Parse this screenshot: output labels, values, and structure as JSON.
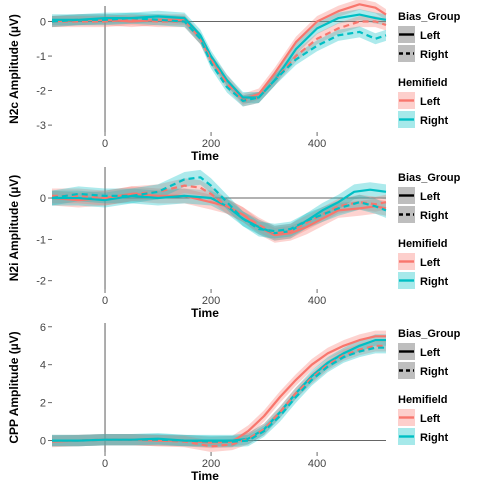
{
  "colors": {
    "left": "#F8766D",
    "right": "#00BFC4",
    "left_ribbon": "#F8766D",
    "right_ribbon": "#00BFC4",
    "legend_key_bg": "#BEBEBE"
  },
  "legend": {
    "bias_group": {
      "title": "Bias_Group",
      "items": [
        "Left",
        "Right"
      ]
    },
    "hemifield": {
      "title": "Hemifield",
      "items": [
        "Left",
        "Right"
      ]
    }
  },
  "chart_data": [
    {
      "type": "line",
      "ylabel": "N2c Amplitude (µV)",
      "xlabel": "Time",
      "xlim": [
        -100,
        530
      ],
      "ylim": [
        -3.2,
        0.45
      ],
      "xticks": [
        0,
        200,
        400
      ],
      "yticks": [
        0,
        -1,
        -2,
        -3
      ],
      "ytick_labels": [
        "0",
        "-1",
        "-2",
        "-3"
      ],
      "grid": false,
      "ribbon_width": 0.16,
      "series": [
        {
          "name": "Left",
          "bias_group": "Left",
          "hemifield": "Left",
          "points": [
            [
              -100,
              0
            ],
            [
              -50,
              0.05
            ],
            [
              0,
              0.05
            ],
            [
              50,
              0
            ],
            [
              100,
              0.05
            ],
            [
              150,
              0.05
            ],
            [
              180,
              -0.5
            ],
            [
              200,
              -1.1
            ],
            [
              230,
              -1.7
            ],
            [
              260,
              -2.25
            ],
            [
              290,
              -2.1
            ],
            [
              320,
              -1.5
            ],
            [
              360,
              -0.6
            ],
            [
              400,
              0
            ],
            [
              440,
              0.3
            ],
            [
              480,
              0.5
            ],
            [
              510,
              0.4
            ],
            [
              530,
              0.2
            ]
          ]
        },
        {
          "name": "Right",
          "bias_group": "Left",
          "hemifield": "Right",
          "points": [
            [
              -100,
              0.05
            ],
            [
              -50,
              0.05
            ],
            [
              0,
              0.1
            ],
            [
              50,
              0.1
            ],
            [
              100,
              0.15
            ],
            [
              150,
              0.1
            ],
            [
              180,
              -0.4
            ],
            [
              200,
              -1.0
            ],
            [
              230,
              -1.7
            ],
            [
              260,
              -2.2
            ],
            [
              290,
              -2.2
            ],
            [
              320,
              -1.7
            ],
            [
              360,
              -0.8
            ],
            [
              400,
              -0.2
            ],
            [
              440,
              0.1
            ],
            [
              480,
              0.2
            ],
            [
              510,
              0.1
            ],
            [
              530,
              0.05
            ]
          ]
        },
        {
          "name": "Left",
          "bias_group": "Right",
          "hemifield": "Left",
          "points": [
            [
              -100,
              0
            ],
            [
              -50,
              0
            ],
            [
              0,
              0
            ],
            [
              50,
              0.05
            ],
            [
              100,
              0
            ],
            [
              150,
              0
            ],
            [
              180,
              -0.5
            ],
            [
              200,
              -1.1
            ],
            [
              230,
              -1.8
            ],
            [
              260,
              -2.3
            ],
            [
              290,
              -2.2
            ],
            [
              320,
              -1.7
            ],
            [
              360,
              -1.0
            ],
            [
              400,
              -0.5
            ],
            [
              440,
              -0.2
            ],
            [
              480,
              0
            ],
            [
              510,
              0
            ],
            [
              530,
              -0.1
            ]
          ]
        },
        {
          "name": "Right",
          "bias_group": "Right",
          "hemifield": "Right",
          "points": [
            [
              -100,
              0
            ],
            [
              -50,
              0.05
            ],
            [
              0,
              0.05
            ],
            [
              50,
              0.1
            ],
            [
              100,
              0.05
            ],
            [
              150,
              0
            ],
            [
              180,
              -0.5
            ],
            [
              200,
              -1.2
            ],
            [
              230,
              -1.9
            ],
            [
              260,
              -2.3
            ],
            [
              290,
              -2.2
            ],
            [
              320,
              -1.7
            ],
            [
              360,
              -1.1
            ],
            [
              400,
              -0.7
            ],
            [
              440,
              -0.4
            ],
            [
              480,
              -0.3
            ],
            [
              510,
              -0.5
            ],
            [
              530,
              -0.4
            ]
          ]
        }
      ]
    },
    {
      "type": "line",
      "ylabel": "N2i Amplitude (µV)",
      "xlabel": "Time",
      "xlim": [
        -100,
        530
      ],
      "ylim": [
        -2.2,
        0.75
      ],
      "xticks": [
        0,
        200,
        400
      ],
      "yticks": [
        0,
        -1,
        -2
      ],
      "ytick_labels": [
        "0",
        "-1",
        "-2"
      ],
      "grid": false,
      "ribbon_width": 0.18,
      "series": [
        {
          "name": "Left",
          "bias_group": "Left",
          "hemifield": "Left",
          "points": [
            [
              -100,
              0
            ],
            [
              -50,
              -0.05
            ],
            [
              0,
              0
            ],
            [
              50,
              0.1
            ],
            [
              100,
              0.05
            ],
            [
              150,
              0.05
            ],
            [
              200,
              -0.1
            ],
            [
              230,
              -0.2
            ],
            [
              260,
              -0.4
            ],
            [
              290,
              -0.7
            ],
            [
              320,
              -0.9
            ],
            [
              350,
              -0.85
            ],
            [
              380,
              -0.7
            ],
            [
              410,
              -0.5
            ],
            [
              440,
              -0.3
            ],
            [
              480,
              -0.25
            ],
            [
              510,
              -0.2
            ],
            [
              530,
              -0.25
            ]
          ]
        },
        {
          "name": "Right",
          "bias_group": "Left",
          "hemifield": "Right",
          "points": [
            [
              -100,
              0
            ],
            [
              -50,
              0
            ],
            [
              0,
              -0.05
            ],
            [
              50,
              0.05
            ],
            [
              100,
              0
            ],
            [
              150,
              0.05
            ],
            [
              200,
              0
            ],
            [
              230,
              -0.2
            ],
            [
              260,
              -0.5
            ],
            [
              290,
              -0.7
            ],
            [
              320,
              -0.85
            ],
            [
              350,
              -0.8
            ],
            [
              380,
              -0.55
            ],
            [
              410,
              -0.3
            ],
            [
              440,
              -0.1
            ],
            [
              470,
              0.15
            ],
            [
              500,
              0.2
            ],
            [
              530,
              0.15
            ]
          ]
        },
        {
          "name": "Left",
          "bias_group": "Right",
          "hemifield": "Left",
          "points": [
            [
              -100,
              0.05
            ],
            [
              -50,
              0.05
            ],
            [
              0,
              0
            ],
            [
              50,
              0.1
            ],
            [
              100,
              0.15
            ],
            [
              150,
              0.3
            ],
            [
              180,
              0.25
            ],
            [
              200,
              0.1
            ],
            [
              230,
              -0.2
            ],
            [
              260,
              -0.4
            ],
            [
              290,
              -0.65
            ],
            [
              320,
              -0.85
            ],
            [
              350,
              -0.8
            ],
            [
              380,
              -0.6
            ],
            [
              410,
              -0.4
            ],
            [
              440,
              -0.2
            ],
            [
              480,
              -0.1
            ],
            [
              510,
              -0.15
            ],
            [
              530,
              -0.1
            ]
          ]
        },
        {
          "name": "Right",
          "bias_group": "Right",
          "hemifield": "Right",
          "points": [
            [
              -100,
              0
            ],
            [
              -50,
              0.1
            ],
            [
              0,
              0.05
            ],
            [
              50,
              0.05
            ],
            [
              100,
              0.15
            ],
            [
              150,
              0.45
            ],
            [
              180,
              0.5
            ],
            [
              200,
              0.3
            ],
            [
              230,
              -0.1
            ],
            [
              260,
              -0.5
            ],
            [
              290,
              -0.75
            ],
            [
              320,
              -0.8
            ],
            [
              350,
              -0.75
            ],
            [
              380,
              -0.55
            ],
            [
              410,
              -0.4
            ],
            [
              440,
              -0.25
            ],
            [
              480,
              -0.1
            ],
            [
              510,
              -0.2
            ],
            [
              530,
              -0.3
            ]
          ]
        }
      ]
    },
    {
      "type": "line",
      "ylabel": "CPP Amplitude (µV)",
      "xlabel": "Time",
      "xlim": [
        -100,
        530
      ],
      "ylim": [
        -0.6,
        6.2
      ],
      "xticks": [
        0,
        200,
        400
      ],
      "yticks": [
        0,
        2,
        4,
        6
      ],
      "ytick_labels": [
        "0",
        "2",
        "4",
        "6"
      ],
      "grid": false,
      "ribbon_width": 0.3,
      "series": [
        {
          "name": "Left",
          "bias_group": "Left",
          "hemifield": "Left",
          "points": [
            [
              -100,
              -0.05
            ],
            [
              -50,
              0
            ],
            [
              0,
              0.05
            ],
            [
              50,
              0.05
            ],
            [
              100,
              0
            ],
            [
              150,
              0
            ],
            [
              200,
              -0.1
            ],
            [
              240,
              -0.05
            ],
            [
              270,
              0.5
            ],
            [
              300,
              1.3
            ],
            [
              330,
              2.3
            ],
            [
              360,
              3.2
            ],
            [
              390,
              4.0
            ],
            [
              420,
              4.6
            ],
            [
              450,
              5.0
            ],
            [
              480,
              5.3
            ],
            [
              510,
              5.5
            ],
            [
              530,
              5.5
            ]
          ]
        },
        {
          "name": "Right",
          "bias_group": "Left",
          "hemifield": "Right",
          "points": [
            [
              -100,
              0
            ],
            [
              -50,
              0
            ],
            [
              0,
              0.05
            ],
            [
              50,
              0.05
            ],
            [
              100,
              0.1
            ],
            [
              150,
              0
            ],
            [
              200,
              0
            ],
            [
              240,
              0
            ],
            [
              270,
              0.1
            ],
            [
              300,
              0.6
            ],
            [
              330,
              1.5
            ],
            [
              360,
              2.5
            ],
            [
              390,
              3.4
            ],
            [
              420,
              4.1
            ],
            [
              450,
              4.6
            ],
            [
              480,
              5.0
            ],
            [
              510,
              5.3
            ],
            [
              530,
              5.3
            ]
          ]
        },
        {
          "name": "Left",
          "bias_group": "Right",
          "hemifield": "Left",
          "points": [
            [
              -100,
              0
            ],
            [
              -50,
              0
            ],
            [
              0,
              0.05
            ],
            [
              50,
              0.05
            ],
            [
              100,
              0
            ],
            [
              150,
              -0.05
            ],
            [
              200,
              -0.3
            ],
            [
              240,
              -0.2
            ],
            [
              270,
              0.1
            ],
            [
              300,
              0.6
            ],
            [
              330,
              1.5
            ],
            [
              360,
              2.5
            ],
            [
              390,
              3.3
            ],
            [
              420,
              4.0
            ],
            [
              450,
              4.5
            ],
            [
              480,
              4.8
            ],
            [
              510,
              5.0
            ],
            [
              530,
              5.0
            ]
          ]
        },
        {
          "name": "Right",
          "bias_group": "Right",
          "hemifield": "Right",
          "points": [
            [
              -100,
              0
            ],
            [
              -50,
              0
            ],
            [
              0,
              0.05
            ],
            [
              50,
              0.05
            ],
            [
              100,
              0.05
            ],
            [
              150,
              0
            ],
            [
              200,
              -0.05
            ],
            [
              240,
              -0.05
            ],
            [
              270,
              0
            ],
            [
              300,
              0.5
            ],
            [
              330,
              1.3
            ],
            [
              360,
              2.3
            ],
            [
              390,
              3.2
            ],
            [
              420,
              3.9
            ],
            [
              450,
              4.4
            ],
            [
              480,
              4.7
            ],
            [
              510,
              4.9
            ],
            [
              530,
              4.9
            ]
          ]
        }
      ]
    }
  ]
}
